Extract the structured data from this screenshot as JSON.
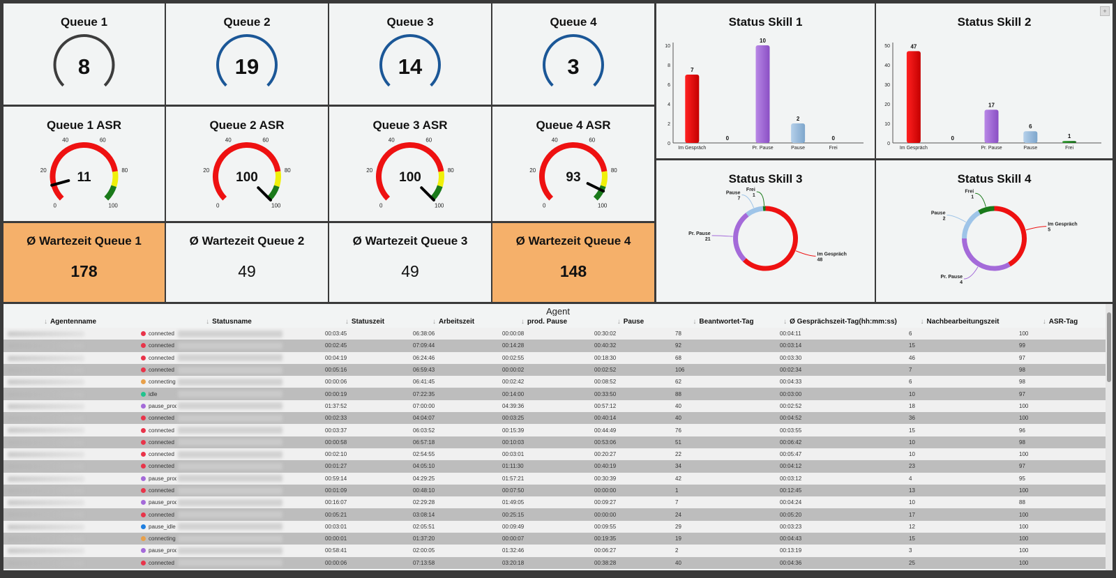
{
  "queues": [
    {
      "title": "Queue 1",
      "count": "8",
      "arc_color": "#3d3d3d"
    },
    {
      "title": "Queue 2",
      "count": "19",
      "arc_color": "#1b5797"
    },
    {
      "title": "Queue 3",
      "count": "14",
      "arc_color": "#1b5797"
    },
    {
      "title": "Queue 4",
      "count": "3",
      "arc_color": "#1b5797"
    }
  ],
  "asr": [
    {
      "title": "Queue 1 ASR",
      "value": "11",
      "needle": 11
    },
    {
      "title": "Queue 2 ASR",
      "value": "100",
      "needle": 100
    },
    {
      "title": "Queue 3 ASR",
      "value": "100",
      "needle": 100
    },
    {
      "title": "Queue 4 ASR",
      "value": "93",
      "needle": 93
    }
  ],
  "asr_ticks": [
    "0",
    "20",
    "40",
    "60",
    "80",
    "100"
  ],
  "wait": [
    {
      "title": "Ø Wartezeit Queue 1",
      "value": "178",
      "highlight": true
    },
    {
      "title": "Ø Wartezeit Queue 2",
      "value": "49",
      "highlight": false
    },
    {
      "title": "Ø Wartezeit Queue 3",
      "value": "49",
      "highlight": false
    },
    {
      "title": "Ø Wartezeit Queue 4",
      "value": "148",
      "highlight": true
    }
  ],
  "colors": {
    "orange": "#f5b06a",
    "red": "#ee1111",
    "purple": "#a46ad9",
    "light_blue": "#9ec4e8",
    "green": "#1a7a1a",
    "yellow": "#f0f00a"
  },
  "chart_data": [
    {
      "type": "bar",
      "title": "Status Skill 1",
      "categories": [
        "Im Gespräch",
        "",
        "Pr. Pause",
        "Pause",
        "Frei"
      ],
      "values": [
        7,
        0,
        10,
        2,
        0
      ],
      "ylim": [
        0,
        10
      ],
      "yticks": [
        "0",
        "2",
        "4",
        "6",
        "8",
        "10"
      ]
    },
    {
      "type": "bar",
      "title": "Status Skill 2",
      "categories": [
        "Im Gespräch",
        "",
        "Pr. Pause",
        "Pause",
        "Frei"
      ],
      "values": [
        47,
        0,
        17,
        6,
        1
      ],
      "ylim": [
        0,
        50
      ],
      "yticks": [
        "0",
        "10",
        "20",
        "30",
        "40",
        "50"
      ]
    },
    {
      "type": "pie",
      "title": "Status Skill 3",
      "slices": [
        {
          "label": "Im Gespräch",
          "value": 48
        },
        {
          "label": "Pr. Pause",
          "value": 21
        },
        {
          "label": "Pause",
          "value": 7
        },
        {
          "label": "Frei",
          "value": 1
        }
      ]
    },
    {
      "type": "pie",
      "title": "Status Skill 4",
      "slices": [
        {
          "label": "Im Gespräch",
          "value": 5
        },
        {
          "label": "Pr. Pause",
          "value": 4
        },
        {
          "label": "Pause",
          "value": 2
        },
        {
          "label": "Frei",
          "value": 1
        }
      ]
    }
  ],
  "agent": {
    "title": "Agent",
    "columns": [
      "Agentenname",
      "Statusname",
      "Statuszeit",
      "Arbeitszeit",
      "prod. Pause",
      "Pause",
      "Beantwortet-Tag",
      "Ø Gesprächszeit-Tag(hh:mm:ss)",
      "Nachbearbeitungszeit",
      "ASR-Tag"
    ],
    "rows": [
      {
        "status": "connected",
        "color": "#e8344a",
        "statuszeit": "00:03:45",
        "arbeitszeit": "06:38:06",
        "prod_pause": "00:00:08",
        "pause": "00:30:02",
        "beantwortet": "78",
        "gespraech": "00:04:11",
        "nachbearbeitung": "6",
        "asr": "100"
      },
      {
        "status": "connected",
        "color": "#e8344a",
        "statuszeit": "00:02:45",
        "arbeitszeit": "07:09:44",
        "prod_pause": "00:14:28",
        "pause": "00:40:32",
        "beantwortet": "92",
        "gespraech": "00:03:14",
        "nachbearbeitung": "15",
        "asr": "99"
      },
      {
        "status": "connected",
        "color": "#e8344a",
        "statuszeit": "00:04:19",
        "arbeitszeit": "06:24:46",
        "prod_pause": "00:02:55",
        "pause": "00:18:30",
        "beantwortet": "68",
        "gespraech": "00:03:30",
        "nachbearbeitung": "46",
        "asr": "97"
      },
      {
        "status": "connected",
        "color": "#e8344a",
        "statuszeit": "00:05:16",
        "arbeitszeit": "06:59:43",
        "prod_pause": "00:00:02",
        "pause": "00:02:52",
        "beantwortet": "106",
        "gespraech": "00:02:34",
        "nachbearbeitung": "7",
        "asr": "98"
      },
      {
        "status": "connecting",
        "color": "#e8a04a",
        "statuszeit": "00:00:06",
        "arbeitszeit": "06:41:45",
        "prod_pause": "00:02:42",
        "pause": "00:08:52",
        "beantwortet": "62",
        "gespraech": "00:04:33",
        "nachbearbeitung": "6",
        "asr": "98"
      },
      {
        "status": "idle",
        "color": "#22c38e",
        "statuszeit": "00:00:19",
        "arbeitszeit": "07:22:35",
        "prod_pause": "00:14:00",
        "pause": "00:33:50",
        "beantwortet": "88",
        "gespraech": "00:03:00",
        "nachbearbeitung": "10",
        "asr": "97"
      },
      {
        "status": "pause_prod",
        "color": "#a46ad9",
        "statuszeit": "01:37:52",
        "arbeitszeit": "07:00:00",
        "prod_pause": "04:39:36",
        "pause": "00:57:12",
        "beantwortet": "40",
        "gespraech": "00:02:52",
        "nachbearbeitung": "18",
        "asr": "100"
      },
      {
        "status": "connected",
        "color": "#e8344a",
        "statuszeit": "00:02:33",
        "arbeitszeit": "04:04:07",
        "prod_pause": "00:03:25",
        "pause": "00:40:14",
        "beantwortet": "40",
        "gespraech": "00:04:52",
        "nachbearbeitung": "36",
        "asr": "100"
      },
      {
        "status": "connected",
        "color": "#e8344a",
        "statuszeit": "00:03:37",
        "arbeitszeit": "06:03:52",
        "prod_pause": "00:15:39",
        "pause": "00:44:49",
        "beantwortet": "76",
        "gespraech": "00:03:55",
        "nachbearbeitung": "15",
        "asr": "96"
      },
      {
        "status": "connected",
        "color": "#e8344a",
        "statuszeit": "00:00:58",
        "arbeitszeit": "06:57:18",
        "prod_pause": "00:10:03",
        "pause": "00:53:06",
        "beantwortet": "51",
        "gespraech": "00:06:42",
        "nachbearbeitung": "10",
        "asr": "98"
      },
      {
        "status": "connected",
        "color": "#e8344a",
        "statuszeit": "00:02:10",
        "arbeitszeit": "02:54:55",
        "prod_pause": "00:03:01",
        "pause": "00:20:27",
        "beantwortet": "22",
        "gespraech": "00:05:47",
        "nachbearbeitung": "10",
        "asr": "100"
      },
      {
        "status": "connected",
        "color": "#e8344a",
        "statuszeit": "00:01:27",
        "arbeitszeit": "04:05:10",
        "prod_pause": "01:11:30",
        "pause": "00:40:19",
        "beantwortet": "34",
        "gespraech": "00:04:12",
        "nachbearbeitung": "23",
        "asr": "97"
      },
      {
        "status": "pause_prod",
        "color": "#a46ad9",
        "statuszeit": "00:59:14",
        "arbeitszeit": "04:29:25",
        "prod_pause": "01:57:21",
        "pause": "00:30:39",
        "beantwortet": "42",
        "gespraech": "00:03:12",
        "nachbearbeitung": "4",
        "asr": "95"
      },
      {
        "status": "connected",
        "color": "#e8344a",
        "statuszeit": "00:01:09",
        "arbeitszeit": "00:48:10",
        "prod_pause": "00:07:50",
        "pause": "00:00:00",
        "beantwortet": "1",
        "gespraech": "00:12:45",
        "nachbearbeitung": "13",
        "asr": "100"
      },
      {
        "status": "pause_prod",
        "color": "#a46ad9",
        "statuszeit": "00:16:07",
        "arbeitszeit": "02:29:28",
        "prod_pause": "01:49:05",
        "pause": "00:09:27",
        "beantwortet": "7",
        "gespraech": "00:04:24",
        "nachbearbeitung": "10",
        "asr": "88"
      },
      {
        "status": "connected",
        "color": "#e8344a",
        "statuszeit": "00:05:21",
        "arbeitszeit": "03:08:14",
        "prod_pause": "00:25:15",
        "pause": "00:00:00",
        "beantwortet": "24",
        "gespraech": "00:05:20",
        "nachbearbeitung": "17",
        "asr": "100"
      },
      {
        "status": "pause_idle",
        "color": "#1f7fe0",
        "statuszeit": "00:03:01",
        "arbeitszeit": "02:05:51",
        "prod_pause": "00:09:49",
        "pause": "00:09:55",
        "beantwortet": "29",
        "gespraech": "00:03:23",
        "nachbearbeitung": "12",
        "asr": "100"
      },
      {
        "status": "connecting",
        "color": "#e8a04a",
        "statuszeit": "00:00:01",
        "arbeitszeit": "01:37:20",
        "prod_pause": "00:00:07",
        "pause": "00:19:35",
        "beantwortet": "19",
        "gespraech": "00:04:43",
        "nachbearbeitung": "15",
        "asr": "100"
      },
      {
        "status": "pause_prod",
        "color": "#a46ad9",
        "statuszeit": "00:58:41",
        "arbeitszeit": "02:00:05",
        "prod_pause": "01:32:46",
        "pause": "00:06:27",
        "beantwortet": "2",
        "gespraech": "00:13:19",
        "nachbearbeitung": "3",
        "asr": "100"
      },
      {
        "status": "connected",
        "color": "#e8344a",
        "statuszeit": "00:00:06",
        "arbeitszeit": "07:13:58",
        "prod_pause": "03:20:18",
        "pause": "00:38:28",
        "beantwortet": "40",
        "gespraech": "00:04:36",
        "nachbearbeitung": "25",
        "asr": "100"
      }
    ]
  }
}
